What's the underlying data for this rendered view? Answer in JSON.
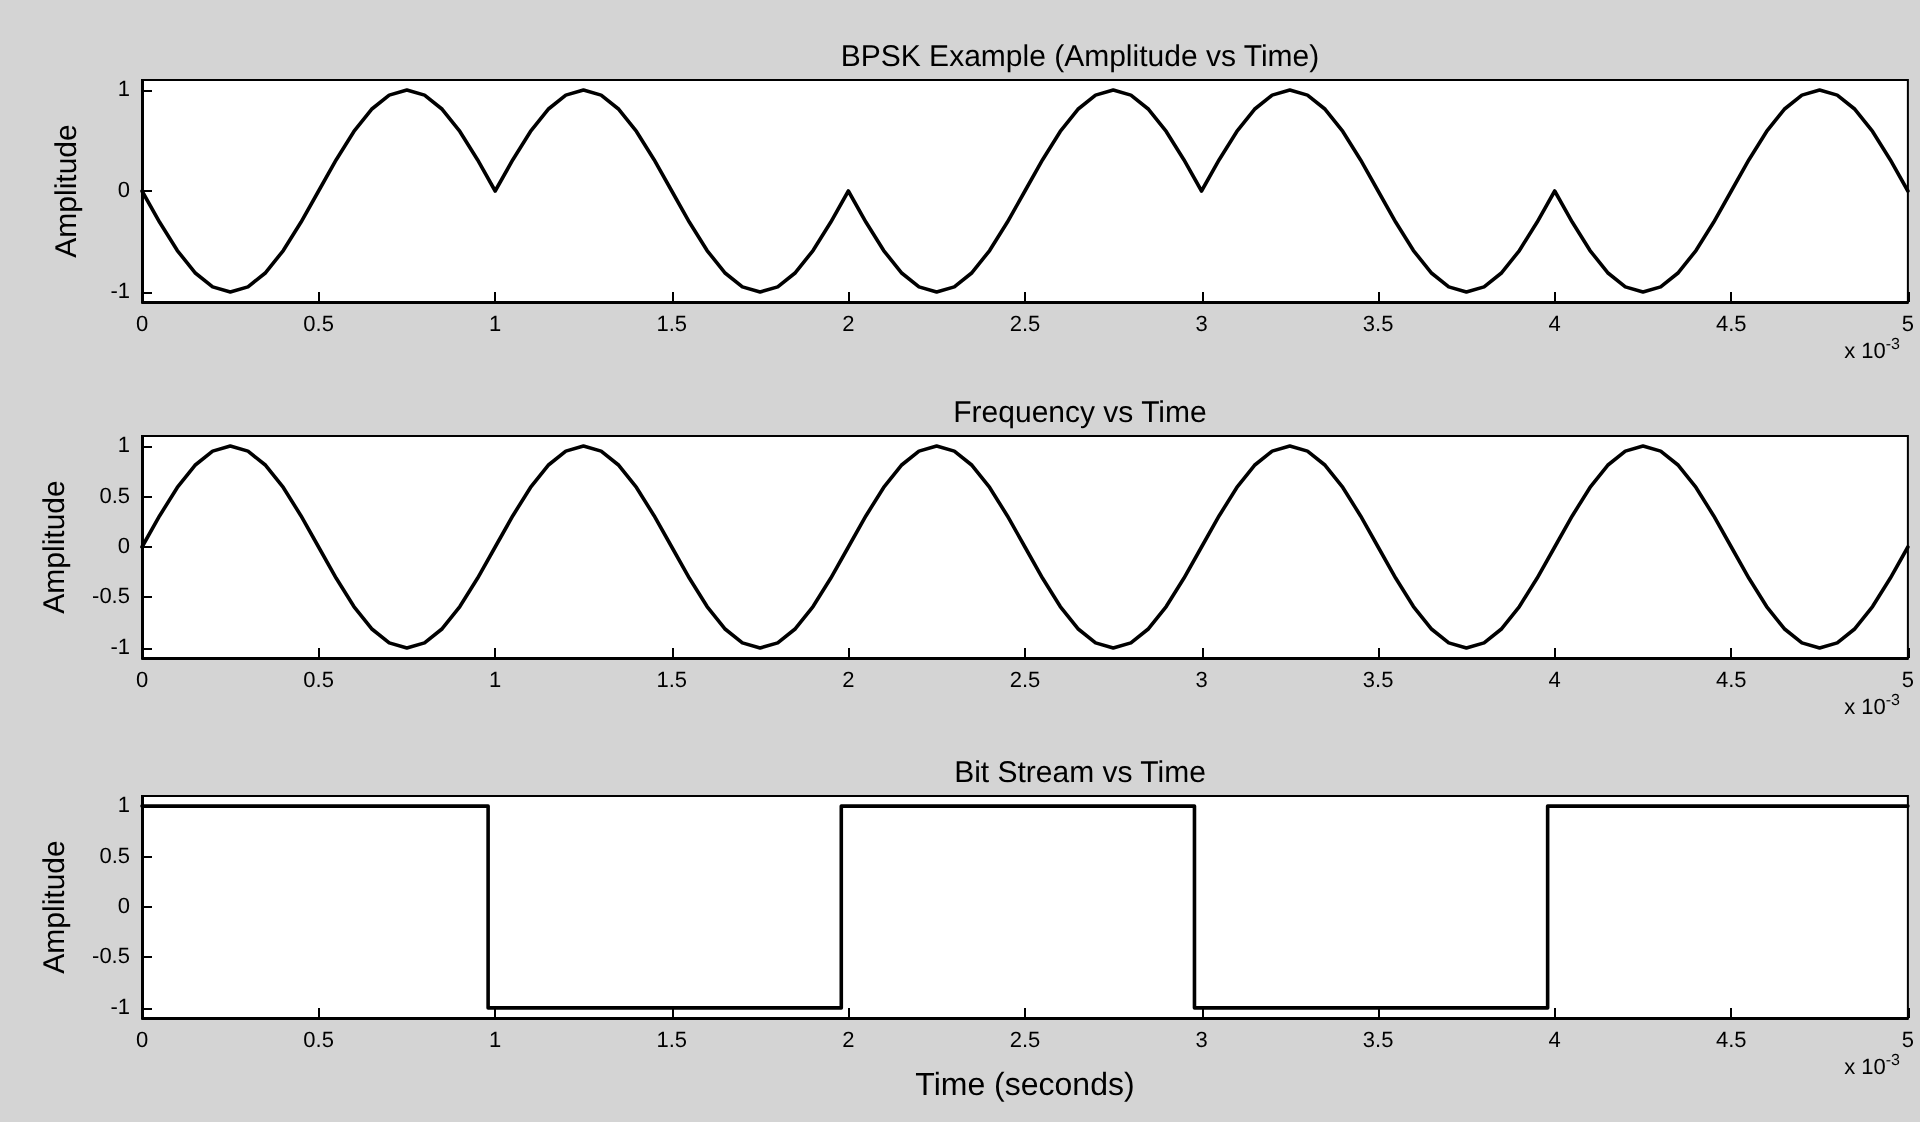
{
  "chart_data": [
    {
      "type": "line",
      "title": "BPSK Example (Amplitude vs Time)",
      "ylabel": "Amplitude",
      "annotations": [
        "x 10$^{-3}$"
      ],
      "x": [
        0,
        0.05,
        0.1,
        0.15,
        0.2,
        0.25,
        0.3,
        0.35,
        0.4,
        0.45,
        0.5,
        0.55,
        0.6,
        0.65,
        0.7,
        0.75,
        0.8,
        0.85,
        0.9,
        0.95,
        1,
        1.05,
        1.1,
        1.15,
        1.2,
        1.25,
        1.3,
        1.35,
        1.4,
        1.45,
        1.5,
        1.55,
        1.6,
        1.65,
        1.7,
        1.75,
        1.8,
        1.85,
        1.9,
        1.95,
        2,
        2.05,
        2.1,
        2.15,
        2.2,
        2.25,
        2.3,
        2.35,
        2.4,
        2.45,
        2.5,
        2.55,
        2.6,
        2.65,
        2.7,
        2.75,
        2.8,
        2.85,
        2.9,
        2.95,
        3,
        3.05,
        3.1,
        3.15,
        3.2,
        3.25,
        3.3,
        3.35,
        3.4,
        3.45,
        3.5,
        3.55,
        3.6,
        3.65,
        3.7,
        3.75,
        3.8,
        3.85,
        3.9,
        3.95,
        4,
        4.05,
        4.1,
        4.15,
        4.2,
        4.25,
        4.3,
        4.35,
        4.4,
        4.45,
        4.5,
        4.55,
        4.6,
        4.65,
        4.7,
        4.75,
        4.8,
        4.85,
        4.9,
        4.95,
        5
      ],
      "series": [
        {
          "color": "#000000",
          "values": [
            0,
            -0.31,
            -0.59,
            -0.81,
            -0.95,
            -1,
            -0.95,
            -0.81,
            -0.59,
            -0.31,
            0,
            0.31,
            0.59,
            0.81,
            0.95,
            1,
            0.95,
            0.81,
            0.59,
            0.31,
            0,
            0.31,
            0.59,
            0.81,
            0.95,
            1,
            0.95,
            0.81,
            0.59,
            0.31,
            0,
            -0.31,
            -0.59,
            -0.81,
            -0.95,
            -1,
            -0.95,
            -0.81,
            -0.59,
            -0.31,
            0,
            -0.31,
            -0.59,
            -0.81,
            -0.95,
            -1,
            -0.95,
            -0.81,
            -0.59,
            -0.31,
            0,
            0.31,
            0.59,
            0.81,
            0.95,
            1,
            0.95,
            0.81,
            0.59,
            0.31,
            0,
            0.31,
            0.59,
            0.81,
            0.95,
            1,
            0.95,
            0.81,
            0.59,
            0.31,
            0,
            -0.31,
            -0.59,
            -0.81,
            -0.95,
            -1,
            -0.95,
            -0.81,
            -0.59,
            -0.31,
            0,
            -0.31,
            -0.59,
            -0.81,
            -0.95,
            -1,
            -0.95,
            -0.81,
            -0.59,
            -0.31,
            0,
            0.31,
            0.59,
            0.81,
            0.95,
            1,
            0.95,
            0.81,
            0.59,
            0.31,
            0
          ]
        }
      ],
      "xlim": [
        0,
        5
      ],
      "xticks": [
        0,
        0.5,
        1,
        1.5,
        2,
        2.5,
        3,
        3.5,
        4,
        4.5,
        5
      ],
      "ylim": [
        -1.1,
        1.1
      ],
      "yticks": [
        -1,
        0,
        1
      ],
      "marker": "none",
      "line_style": "solid",
      "grid": false
    },
    {
      "type": "line",
      "title": "Frequency vs Time",
      "ylabel": "Amplitude",
      "annotations": [
        "x 10$^{-3}$"
      ],
      "x": [
        0,
        0.05,
        0.1,
        0.15,
        0.2,
        0.25,
        0.3,
        0.35,
        0.4,
        0.45,
        0.5,
        0.55,
        0.6,
        0.65,
        0.7,
        0.75,
        0.8,
        0.85,
        0.9,
        0.95,
        1,
        1.05,
        1.1,
        1.15,
        1.2,
        1.25,
        1.3,
        1.35,
        1.4,
        1.45,
        1.5,
        1.55,
        1.6,
        1.65,
        1.7,
        1.75,
        1.8,
        1.85,
        1.9,
        1.95,
        2,
        2.05,
        2.1,
        2.15,
        2.2,
        2.25,
        2.3,
        2.35,
        2.4,
        2.45,
        2.5,
        2.55,
        2.6,
        2.65,
        2.7,
        2.75,
        2.8,
        2.85,
        2.9,
        2.95,
        3,
        3.05,
        3.1,
        3.15,
        3.2,
        3.25,
        3.3,
        3.35,
        3.4,
        3.45,
        3.5,
        3.55,
        3.6,
        3.65,
        3.7,
        3.75,
        3.8,
        3.85,
        3.9,
        3.95,
        4,
        4.05,
        4.1,
        4.15,
        4.2,
        4.25,
        4.3,
        4.35,
        4.4,
        4.45,
        4.5,
        4.55,
        4.6,
        4.65,
        4.7,
        4.75,
        4.8,
        4.85,
        4.9,
        4.95,
        5
      ],
      "series": [
        {
          "color": "#000000",
          "values": [
            0,
            0.31,
            0.59,
            0.81,
            0.95,
            1,
            0.95,
            0.81,
            0.59,
            0.31,
            0,
            -0.31,
            -0.59,
            -0.81,
            -0.95,
            -1,
            -0.95,
            -0.81,
            -0.59,
            -0.31,
            0,
            0.31,
            0.59,
            0.81,
            0.95,
            1,
            0.95,
            0.81,
            0.59,
            0.31,
            0,
            -0.31,
            -0.59,
            -0.81,
            -0.95,
            -1,
            -0.95,
            -0.81,
            -0.59,
            -0.31,
            0,
            0.31,
            0.59,
            0.81,
            0.95,
            1,
            0.95,
            0.81,
            0.59,
            0.31,
            0,
            -0.31,
            -0.59,
            -0.81,
            -0.95,
            -1,
            -0.95,
            -0.81,
            -0.59,
            -0.31,
            0,
            0.31,
            0.59,
            0.81,
            0.95,
            1,
            0.95,
            0.81,
            0.59,
            0.31,
            0,
            -0.31,
            -0.59,
            -0.81,
            -0.95,
            -1,
            -0.95,
            -0.81,
            -0.59,
            -0.31,
            0,
            0.31,
            0.59,
            0.81,
            0.95,
            1,
            0.95,
            0.81,
            0.59,
            0.31,
            0,
            -0.31,
            -0.59,
            -0.81,
            -0.95,
            -1,
            -0.95,
            -0.81,
            -0.59,
            -0.31,
            0
          ]
        }
      ],
      "xlim": [
        0,
        5
      ],
      "xticks": [
        0,
        0.5,
        1,
        1.5,
        2,
        2.5,
        3,
        3.5,
        4,
        4.5,
        5
      ],
      "ylim": [
        -1.1,
        1.1
      ],
      "yticks": [
        -1,
        -0.5,
        0,
        0.5,
        1
      ],
      "marker": "none",
      "line_style": "solid",
      "grid": false
    },
    {
      "type": "line",
      "title": "Bit Stream vs Time",
      "xlabel": "Time (seconds)",
      "ylabel": "Amplitude",
      "annotations": [
        "x 10$^{-3}$"
      ],
      "x": [
        0,
        0.98,
        0.98,
        1.98,
        1.98,
        2.98,
        2.98,
        3.98,
        3.98,
        5
      ],
      "series": [
        {
          "color": "#000000",
          "values": [
            1,
            1,
            -1,
            -1,
            1,
            1,
            -1,
            -1,
            1,
            1
          ]
        }
      ],
      "xlim": [
        0,
        5
      ],
      "xticks": [
        0,
        0.5,
        1,
        1.5,
        2,
        2.5,
        3,
        3.5,
        4,
        4.5,
        5
      ],
      "ylim": [
        -1.1,
        1.1
      ],
      "yticks": [
        -1,
        -0.5,
        0,
        0.5,
        1
      ],
      "marker": "none",
      "line_style": "solid",
      "grid": false
    }
  ]
}
